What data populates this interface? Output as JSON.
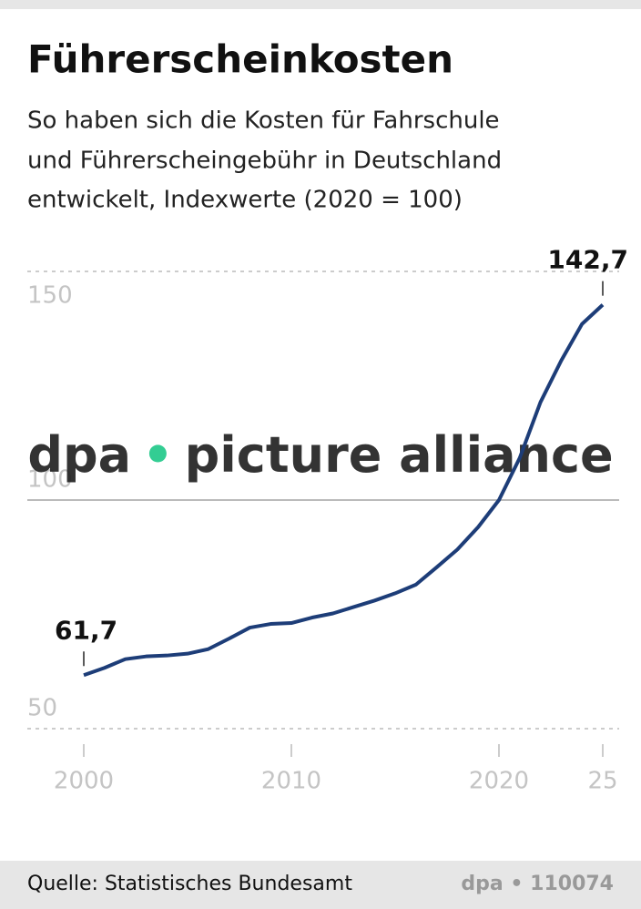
{
  "chart_data": {
    "type": "line",
    "title": "Führerscheinkosten",
    "subtitle": [
      "So haben sich die Kosten für Fahrschule",
      "und Führerscheingebühr in Deutschland",
      "entwickelt, Indexwerte (2020 = 100)"
    ],
    "watermark": [
      "dpa",
      "picture alliance"
    ],
    "source": "Quelle: Statistisches Bundesamt",
    "credit": "dpa • 110074",
    "x": [
      2000,
      2001,
      2002,
      2003,
      2004,
      2005,
      2006,
      2007,
      2008,
      2009,
      2010,
      2011,
      2012,
      2013,
      2014,
      2015,
      2016,
      2017,
      2018,
      2019,
      2020,
      2021,
      2022,
      2023,
      2024,
      2025
    ],
    "series": [
      {
        "color": "#1d3d78",
        "values": [
          61.7,
          63.3,
          65.2,
          65.8,
          66.0,
          66.4,
          67.4,
          69.7,
          72.1,
          72.9,
          73.1,
          74.3,
          75.2,
          76.6,
          78.0,
          79.6,
          81.5,
          85.3,
          89.2,
          94.1,
          100,
          109.2,
          121.4,
          130.5,
          138.5,
          142.7
        ],
        "value_labels": [
          "61,7",
          null,
          null,
          null,
          null,
          null,
          null,
          null,
          null,
          null,
          null,
          null,
          null,
          null,
          null,
          null,
          null,
          null,
          null,
          null,
          null,
          null,
          null,
          null,
          null,
          "142,7"
        ]
      }
    ],
    "xlim": [
      2000,
      2025
    ],
    "xticks": [
      2000,
      2010,
      2020,
      {
        "value": 2025,
        "label": "25"
      }
    ],
    "ylim": [
      50,
      150
    ],
    "yticks": [
      50,
      100,
      150
    ],
    "baseline": 100,
    "grid": true
  }
}
